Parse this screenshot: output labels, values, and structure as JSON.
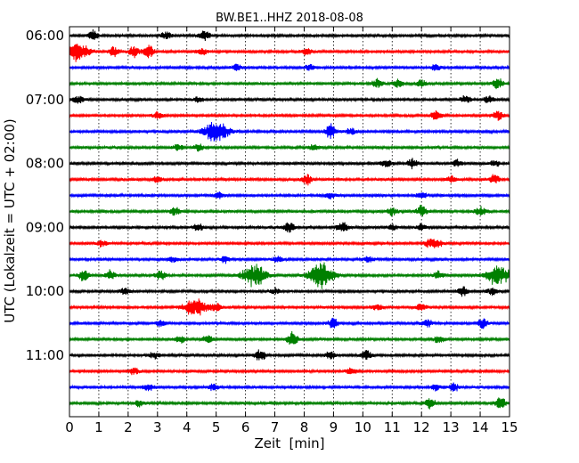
{
  "chart_data": {
    "type": "line",
    "title": "BW.BE1..HHZ 2018-08-08",
    "xlabel": "Zeit  [min]",
    "ylabel": "UTC (Lokalzeit = UTC + 02:00)",
    "xlim": [
      0,
      15
    ],
    "x_ticks": [
      "0",
      "1",
      "2",
      "3",
      "4",
      "5",
      "6",
      "7",
      "8",
      "9",
      "10",
      "11",
      "12",
      "13",
      "14",
      "15"
    ],
    "y_ticks": [
      "06:00",
      "07:00",
      "08:00",
      "09:00",
      "10:00",
      "11:00"
    ],
    "grid": "vertical dotted",
    "trace_colors": [
      "#000000",
      "#ff0000",
      "#0000ff",
      "#008000"
    ],
    "traces": [
      {
        "start": "06:00",
        "events": [
          [
            0.8,
            6
          ],
          [
            3.3,
            5
          ],
          [
            4.6,
            6
          ]
        ]
      },
      {
        "start": "06:15",
        "events": [
          [
            0.25,
            12
          ],
          [
            1.5,
            6
          ],
          [
            2.2,
            7
          ],
          [
            2.7,
            8
          ],
          [
            4.5,
            4
          ],
          [
            8.1,
            5
          ]
        ]
      },
      {
        "start": "06:30",
        "events": [
          [
            5.7,
            4
          ],
          [
            8.2,
            4
          ],
          [
            12.5,
            4
          ]
        ]
      },
      {
        "start": "06:45",
        "events": [
          [
            10.5,
            6
          ],
          [
            11.2,
            5
          ],
          [
            12.0,
            4
          ],
          [
            14.6,
            8
          ]
        ]
      },
      {
        "start": "07:00",
        "events": [
          [
            0.3,
            5
          ],
          [
            4.4,
            4
          ],
          [
            13.5,
            5
          ],
          [
            14.3,
            5
          ]
        ]
      },
      {
        "start": "07:15",
        "events": [
          [
            3.0,
            4
          ],
          [
            12.5,
            6
          ],
          [
            14.6,
            6
          ]
        ]
      },
      {
        "start": "07:30",
        "events": [
          [
            5.0,
            14
          ],
          [
            8.9,
            9
          ],
          [
            9.6,
            4
          ]
        ]
      },
      {
        "start": "07:45",
        "events": [
          [
            3.7,
            4
          ],
          [
            4.4,
            4
          ],
          [
            8.3,
            4
          ]
        ]
      },
      {
        "start": "08:00",
        "events": [
          [
            10.8,
            6
          ],
          [
            11.7,
            6
          ],
          [
            13.2,
            4
          ],
          [
            14.5,
            4
          ]
        ]
      },
      {
        "start": "08:15",
        "events": [
          [
            3.0,
            4
          ],
          [
            8.1,
            6
          ],
          [
            13.0,
            4
          ],
          [
            14.5,
            6
          ]
        ]
      },
      {
        "start": "08:30",
        "events": [
          [
            5.1,
            4
          ],
          [
            8.9,
            4
          ],
          [
            12.0,
            4
          ]
        ]
      },
      {
        "start": "08:45",
        "events": [
          [
            3.6,
            5
          ],
          [
            11.0,
            5
          ],
          [
            12.0,
            7
          ],
          [
            14.0,
            6
          ]
        ]
      },
      {
        "start": "09:00",
        "events": [
          [
            4.4,
            5
          ],
          [
            7.5,
            7
          ],
          [
            9.3,
            8
          ],
          [
            11.0,
            4
          ],
          [
            12.0,
            4
          ]
        ]
      },
      {
        "start": "09:15",
        "events": [
          [
            1.1,
            4
          ],
          [
            12.3,
            6
          ],
          [
            12.6,
            4
          ]
        ]
      },
      {
        "start": "09:30",
        "events": [
          [
            3.5,
            4
          ],
          [
            5.3,
            4
          ],
          [
            7.1,
            4
          ],
          [
            10.2,
            4
          ]
        ]
      },
      {
        "start": "09:45",
        "events": [
          [
            0.5,
            8
          ],
          [
            1.4,
            6
          ],
          [
            3.1,
            6
          ],
          [
            6.3,
            14
          ],
          [
            8.6,
            16
          ],
          [
            12.6,
            5
          ],
          [
            14.6,
            12
          ]
        ]
      },
      {
        "start": "10:00",
        "events": [
          [
            1.9,
            4
          ],
          [
            7.0,
            4
          ],
          [
            13.4,
            6
          ],
          [
            14.4,
            5
          ]
        ]
      },
      {
        "start": "10:15",
        "events": [
          [
            4.3,
            11
          ],
          [
            5.0,
            5
          ],
          [
            10.5,
            4
          ],
          [
            12.0,
            4
          ]
        ]
      },
      {
        "start": "10:30",
        "events": [
          [
            3.1,
            4
          ],
          [
            9.0,
            7
          ],
          [
            12.2,
            5
          ],
          [
            14.1,
            6
          ]
        ]
      },
      {
        "start": "10:45",
        "events": [
          [
            3.8,
            5
          ],
          [
            4.7,
            5
          ],
          [
            7.6,
            9
          ],
          [
            12.6,
            5
          ]
        ]
      },
      {
        "start": "11:00",
        "events": [
          [
            2.9,
            4
          ],
          [
            6.5,
            8
          ],
          [
            8.9,
            5
          ],
          [
            10.1,
            7
          ]
        ]
      },
      {
        "start": "11:15",
        "events": [
          [
            2.2,
            4
          ],
          [
            9.6,
            4
          ]
        ]
      },
      {
        "start": "11:30",
        "events": [
          [
            2.7,
            5
          ],
          [
            4.9,
            4
          ],
          [
            12.5,
            4
          ],
          [
            13.1,
            5
          ]
        ]
      },
      {
        "start": "11:45",
        "events": [
          [
            2.4,
            4
          ],
          [
            12.3,
            7
          ],
          [
            14.7,
            8
          ]
        ]
      }
    ]
  }
}
